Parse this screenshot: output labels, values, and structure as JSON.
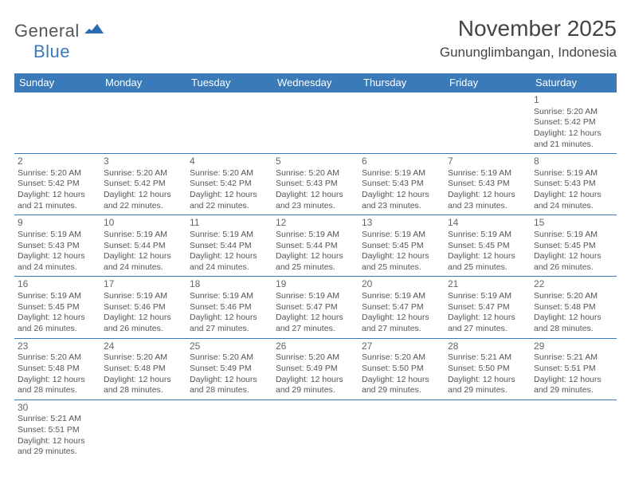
{
  "logo": {
    "word1": "General",
    "word2": "Blue",
    "mark_color": "#2b6cb0"
  },
  "title": "November 2025",
  "location": "Gununglimbangan, Indonesia",
  "colors": {
    "header_bg": "#3a7ab8",
    "header_fg": "#ffffff",
    "rule": "#3a7ab8",
    "text": "#555555"
  },
  "day_headers": [
    "Sunday",
    "Monday",
    "Tuesday",
    "Wednesday",
    "Thursday",
    "Friday",
    "Saturday"
  ],
  "weeks": [
    [
      null,
      null,
      null,
      null,
      null,
      null,
      {
        "n": "1",
        "sr": "Sunrise: 5:20 AM",
        "ss": "Sunset: 5:42 PM",
        "d1": "Daylight: 12 hours",
        "d2": "and 21 minutes."
      }
    ],
    [
      {
        "n": "2",
        "sr": "Sunrise: 5:20 AM",
        "ss": "Sunset: 5:42 PM",
        "d1": "Daylight: 12 hours",
        "d2": "and 21 minutes."
      },
      {
        "n": "3",
        "sr": "Sunrise: 5:20 AM",
        "ss": "Sunset: 5:42 PM",
        "d1": "Daylight: 12 hours",
        "d2": "and 22 minutes."
      },
      {
        "n": "4",
        "sr": "Sunrise: 5:20 AM",
        "ss": "Sunset: 5:42 PM",
        "d1": "Daylight: 12 hours",
        "d2": "and 22 minutes."
      },
      {
        "n": "5",
        "sr": "Sunrise: 5:20 AM",
        "ss": "Sunset: 5:43 PM",
        "d1": "Daylight: 12 hours",
        "d2": "and 23 minutes."
      },
      {
        "n": "6",
        "sr": "Sunrise: 5:19 AM",
        "ss": "Sunset: 5:43 PM",
        "d1": "Daylight: 12 hours",
        "d2": "and 23 minutes."
      },
      {
        "n": "7",
        "sr": "Sunrise: 5:19 AM",
        "ss": "Sunset: 5:43 PM",
        "d1": "Daylight: 12 hours",
        "d2": "and 23 minutes."
      },
      {
        "n": "8",
        "sr": "Sunrise: 5:19 AM",
        "ss": "Sunset: 5:43 PM",
        "d1": "Daylight: 12 hours",
        "d2": "and 24 minutes."
      }
    ],
    [
      {
        "n": "9",
        "sr": "Sunrise: 5:19 AM",
        "ss": "Sunset: 5:43 PM",
        "d1": "Daylight: 12 hours",
        "d2": "and 24 minutes."
      },
      {
        "n": "10",
        "sr": "Sunrise: 5:19 AM",
        "ss": "Sunset: 5:44 PM",
        "d1": "Daylight: 12 hours",
        "d2": "and 24 minutes."
      },
      {
        "n": "11",
        "sr": "Sunrise: 5:19 AM",
        "ss": "Sunset: 5:44 PM",
        "d1": "Daylight: 12 hours",
        "d2": "and 24 minutes."
      },
      {
        "n": "12",
        "sr": "Sunrise: 5:19 AM",
        "ss": "Sunset: 5:44 PM",
        "d1": "Daylight: 12 hours",
        "d2": "and 25 minutes."
      },
      {
        "n": "13",
        "sr": "Sunrise: 5:19 AM",
        "ss": "Sunset: 5:45 PM",
        "d1": "Daylight: 12 hours",
        "d2": "and 25 minutes."
      },
      {
        "n": "14",
        "sr": "Sunrise: 5:19 AM",
        "ss": "Sunset: 5:45 PM",
        "d1": "Daylight: 12 hours",
        "d2": "and 25 minutes."
      },
      {
        "n": "15",
        "sr": "Sunrise: 5:19 AM",
        "ss": "Sunset: 5:45 PM",
        "d1": "Daylight: 12 hours",
        "d2": "and 26 minutes."
      }
    ],
    [
      {
        "n": "16",
        "sr": "Sunrise: 5:19 AM",
        "ss": "Sunset: 5:45 PM",
        "d1": "Daylight: 12 hours",
        "d2": "and 26 minutes."
      },
      {
        "n": "17",
        "sr": "Sunrise: 5:19 AM",
        "ss": "Sunset: 5:46 PM",
        "d1": "Daylight: 12 hours",
        "d2": "and 26 minutes."
      },
      {
        "n": "18",
        "sr": "Sunrise: 5:19 AM",
        "ss": "Sunset: 5:46 PM",
        "d1": "Daylight: 12 hours",
        "d2": "and 27 minutes."
      },
      {
        "n": "19",
        "sr": "Sunrise: 5:19 AM",
        "ss": "Sunset: 5:47 PM",
        "d1": "Daylight: 12 hours",
        "d2": "and 27 minutes."
      },
      {
        "n": "20",
        "sr": "Sunrise: 5:19 AM",
        "ss": "Sunset: 5:47 PM",
        "d1": "Daylight: 12 hours",
        "d2": "and 27 minutes."
      },
      {
        "n": "21",
        "sr": "Sunrise: 5:19 AM",
        "ss": "Sunset: 5:47 PM",
        "d1": "Daylight: 12 hours",
        "d2": "and 27 minutes."
      },
      {
        "n": "22",
        "sr": "Sunrise: 5:20 AM",
        "ss": "Sunset: 5:48 PM",
        "d1": "Daylight: 12 hours",
        "d2": "and 28 minutes."
      }
    ],
    [
      {
        "n": "23",
        "sr": "Sunrise: 5:20 AM",
        "ss": "Sunset: 5:48 PM",
        "d1": "Daylight: 12 hours",
        "d2": "and 28 minutes."
      },
      {
        "n": "24",
        "sr": "Sunrise: 5:20 AM",
        "ss": "Sunset: 5:48 PM",
        "d1": "Daylight: 12 hours",
        "d2": "and 28 minutes."
      },
      {
        "n": "25",
        "sr": "Sunrise: 5:20 AM",
        "ss": "Sunset: 5:49 PM",
        "d1": "Daylight: 12 hours",
        "d2": "and 28 minutes."
      },
      {
        "n": "26",
        "sr": "Sunrise: 5:20 AM",
        "ss": "Sunset: 5:49 PM",
        "d1": "Daylight: 12 hours",
        "d2": "and 29 minutes."
      },
      {
        "n": "27",
        "sr": "Sunrise: 5:20 AM",
        "ss": "Sunset: 5:50 PM",
        "d1": "Daylight: 12 hours",
        "d2": "and 29 minutes."
      },
      {
        "n": "28",
        "sr": "Sunrise: 5:21 AM",
        "ss": "Sunset: 5:50 PM",
        "d1": "Daylight: 12 hours",
        "d2": "and 29 minutes."
      },
      {
        "n": "29",
        "sr": "Sunrise: 5:21 AM",
        "ss": "Sunset: 5:51 PM",
        "d1": "Daylight: 12 hours",
        "d2": "and 29 minutes."
      }
    ],
    [
      {
        "n": "30",
        "sr": "Sunrise: 5:21 AM",
        "ss": "Sunset: 5:51 PM",
        "d1": "Daylight: 12 hours",
        "d2": "and 29 minutes."
      },
      null,
      null,
      null,
      null,
      null,
      null
    ]
  ]
}
